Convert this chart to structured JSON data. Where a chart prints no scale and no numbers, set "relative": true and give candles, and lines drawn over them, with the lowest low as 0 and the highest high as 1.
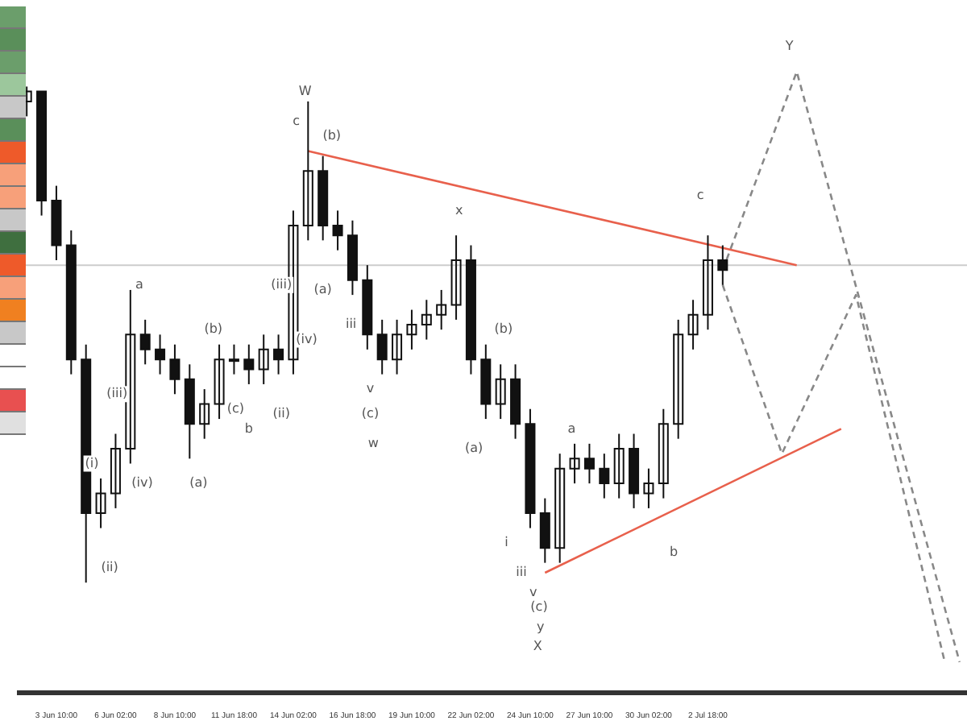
{
  "chart_data": {
    "type": "candlestick",
    "relative": true,
    "color": "#111111",
    "grid": false,
    "legend": false,
    "categories": [
      null,
      null,
      "3 Jun 10:00",
      null,
      null,
      null,
      "6 Jun 02:00",
      null,
      null,
      null,
      "8 Jun 10:00",
      null,
      null,
      null,
      "11 Jun 18:00",
      null,
      null,
      null,
      "14 Jun 02:00",
      null,
      null,
      null,
      "16 Jun 18:00",
      null,
      null,
      null,
      "19 Jun 10:00",
      null,
      null,
      null,
      "22 Jun 02:00",
      null,
      null,
      null,
      "24 Jun 10:00",
      null,
      null,
      null,
      "27 Jun 10:00",
      null,
      null,
      null,
      "30 Jun 02:00",
      null,
      null,
      null,
      "2 Jul 18:00",
      null,
      null,
      null,
      null,
      null,
      null,
      null,
      null,
      null,
      null,
      null,
      null,
      null,
      null,
      null,
      null,
      null
    ],
    "ohlc": [
      [
        0.97,
        1.0,
        0.94,
        0.99
      ],
      [
        0.99,
        0.99,
        0.74,
        0.77
      ],
      [
        0.77,
        0.8,
        0.65,
        0.68
      ],
      [
        0.68,
        0.71,
        0.42,
        0.45
      ],
      [
        0.45,
        0.48,
        0.0,
        0.14
      ],
      [
        0.14,
        0.21,
        0.11,
        0.18
      ],
      [
        0.18,
        0.3,
        0.15,
        0.27
      ],
      [
        0.27,
        0.59,
        0.24,
        0.5
      ],
      [
        0.5,
        0.53,
        0.44,
        0.47
      ],
      [
        0.47,
        0.5,
        0.42,
        0.45
      ],
      [
        0.45,
        0.48,
        0.38,
        0.41
      ],
      [
        0.41,
        0.44,
        0.25,
        0.32
      ],
      [
        0.32,
        0.39,
        0.29,
        0.36
      ],
      [
        0.36,
        0.48,
        0.33,
        0.45
      ],
      [
        0.45,
        0.48,
        0.42,
        0.45
      ],
      [
        0.45,
        0.48,
        0.4,
        0.43
      ],
      [
        0.43,
        0.5,
        0.4,
        0.47
      ],
      [
        0.47,
        0.5,
        0.42,
        0.45
      ],
      [
        0.45,
        0.75,
        0.42,
        0.72
      ],
      [
        0.72,
        0.97,
        0.69,
        0.83
      ],
      [
        0.83,
        0.86,
        0.69,
        0.72
      ],
      [
        0.72,
        0.75,
        0.67,
        0.7
      ],
      [
        0.7,
        0.73,
        0.58,
        0.61
      ],
      [
        0.61,
        0.64,
        0.47,
        0.5
      ],
      [
        0.5,
        0.53,
        0.42,
        0.45
      ],
      [
        0.45,
        0.53,
        0.42,
        0.5
      ],
      [
        0.5,
        0.55,
        0.47,
        0.52
      ],
      [
        0.52,
        0.57,
        0.49,
        0.54
      ],
      [
        0.54,
        0.59,
        0.51,
        0.56
      ],
      [
        0.56,
        0.7,
        0.53,
        0.65
      ],
      [
        0.65,
        0.68,
        0.42,
        0.45
      ],
      [
        0.45,
        0.48,
        0.33,
        0.36
      ],
      [
        0.36,
        0.44,
        0.33,
        0.41
      ],
      [
        0.41,
        0.44,
        0.29,
        0.32
      ],
      [
        0.32,
        0.35,
        0.11,
        0.14
      ],
      [
        0.14,
        0.17,
        0.04,
        0.07
      ],
      [
        0.07,
        0.26,
        0.04,
        0.23
      ],
      [
        0.23,
        0.28,
        0.2,
        0.25
      ],
      [
        0.25,
        0.28,
        0.2,
        0.23
      ],
      [
        0.23,
        0.26,
        0.17,
        0.2
      ],
      [
        0.2,
        0.3,
        0.17,
        0.27
      ],
      [
        0.27,
        0.3,
        0.15,
        0.18
      ],
      [
        0.18,
        0.23,
        0.15,
        0.2
      ],
      [
        0.2,
        0.35,
        0.17,
        0.32
      ],
      [
        0.32,
        0.53,
        0.29,
        0.5
      ],
      [
        0.5,
        0.57,
        0.47,
        0.54
      ],
      [
        0.54,
        0.7,
        0.51,
        0.65
      ],
      [
        0.65,
        0.68,
        0.6,
        0.63
      ],
      null,
      null,
      null,
      null,
      null,
      null,
      null,
      null,
      null,
      null,
      null,
      null,
      null,
      null,
      null,
      null
    ],
    "series": [
      {
        "type": "line",
        "color": "#e8604c",
        "line_style": "solid",
        "marker": "none",
        "values": [
          null,
          null,
          null,
          null,
          null,
          null,
          null,
          null,
          null,
          null,
          null,
          null,
          null,
          null,
          null,
          null,
          null,
          null,
          null,
          0.87,
          null,
          null,
          null,
          null,
          null,
          null,
          null,
          null,
          null,
          null,
          null,
          null,
          null,
          null,
          null,
          null,
          null,
          null,
          null,
          null,
          null,
          null,
          null,
          null,
          null,
          null,
          null,
          null,
          null,
          null,
          null,
          null,
          0.64,
          null,
          null,
          null,
          null,
          null,
          null,
          null,
          null,
          null,
          null,
          null
        ]
      },
      {
        "type": "line",
        "color": "#e8604c",
        "line_style": "solid",
        "marker": "none",
        "values": [
          null,
          null,
          null,
          null,
          null,
          null,
          null,
          null,
          null,
          null,
          null,
          null,
          null,
          null,
          null,
          null,
          null,
          null,
          null,
          null,
          null,
          null,
          null,
          null,
          null,
          null,
          null,
          null,
          null,
          null,
          null,
          null,
          null,
          null,
          null,
          0.02,
          null,
          null,
          null,
          null,
          null,
          null,
          null,
          null,
          null,
          null,
          null,
          null,
          null,
          null,
          null,
          null,
          null,
          null,
          null,
          0.31,
          null,
          null,
          null,
          null,
          null,
          null,
          null,
          null
        ]
      },
      {
        "type": "line",
        "color": "#888888",
        "line_style": "dashed",
        "marker": "none",
        "values": [
          null,
          null,
          null,
          null,
          null,
          null,
          null,
          null,
          null,
          null,
          null,
          null,
          null,
          null,
          null,
          null,
          null,
          null,
          null,
          null,
          null,
          null,
          null,
          null,
          null,
          null,
          null,
          null,
          null,
          null,
          null,
          null,
          null,
          null,
          null,
          null,
          null,
          null,
          null,
          null,
          null,
          null,
          null,
          null,
          null,
          null,
          null,
          0.63,
          null,
          null,
          null,
          null,
          1.03,
          null,
          null,
          null,
          null,
          null,
          null,
          null,
          null,
          null,
          null,
          -0.16
        ]
      },
      {
        "type": "line",
        "color": "#888888",
        "line_style": "dashed",
        "marker": "none",
        "values": [
          null,
          null,
          null,
          null,
          null,
          null,
          null,
          null,
          null,
          null,
          null,
          null,
          null,
          null,
          null,
          null,
          null,
          null,
          null,
          null,
          null,
          null,
          null,
          null,
          null,
          null,
          null,
          null,
          null,
          null,
          null,
          null,
          null,
          null,
          null,
          null,
          null,
          null,
          null,
          null,
          null,
          null,
          null,
          null,
          null,
          null,
          null,
          0.6,
          null,
          null,
          null,
          0.26,
          null,
          null,
          null,
          null,
          0.58,
          null,
          null,
          null,
          null,
          null,
          -0.16,
          null
        ]
      }
    ],
    "ref_lines": [
      {
        "axis": "y",
        "value": 0.64,
        "color": "#cccccc"
      }
    ],
    "annotations": [
      "a",
      "(i)",
      "(ii)",
      "(iii)",
      "(iv)",
      "(a)",
      "(b)",
      "(c)",
      "b",
      "(ii)",
      "(iii)",
      "(iv)",
      "W",
      "c",
      "(b)",
      "(a)",
      "iii",
      "v",
      "(c)",
      "w",
      "x",
      "(b)",
      "(a)",
      "i",
      "iii",
      "v",
      "(c)",
      "y",
      "X",
      "a",
      "b",
      "c",
      "Y"
    ]
  }
}
